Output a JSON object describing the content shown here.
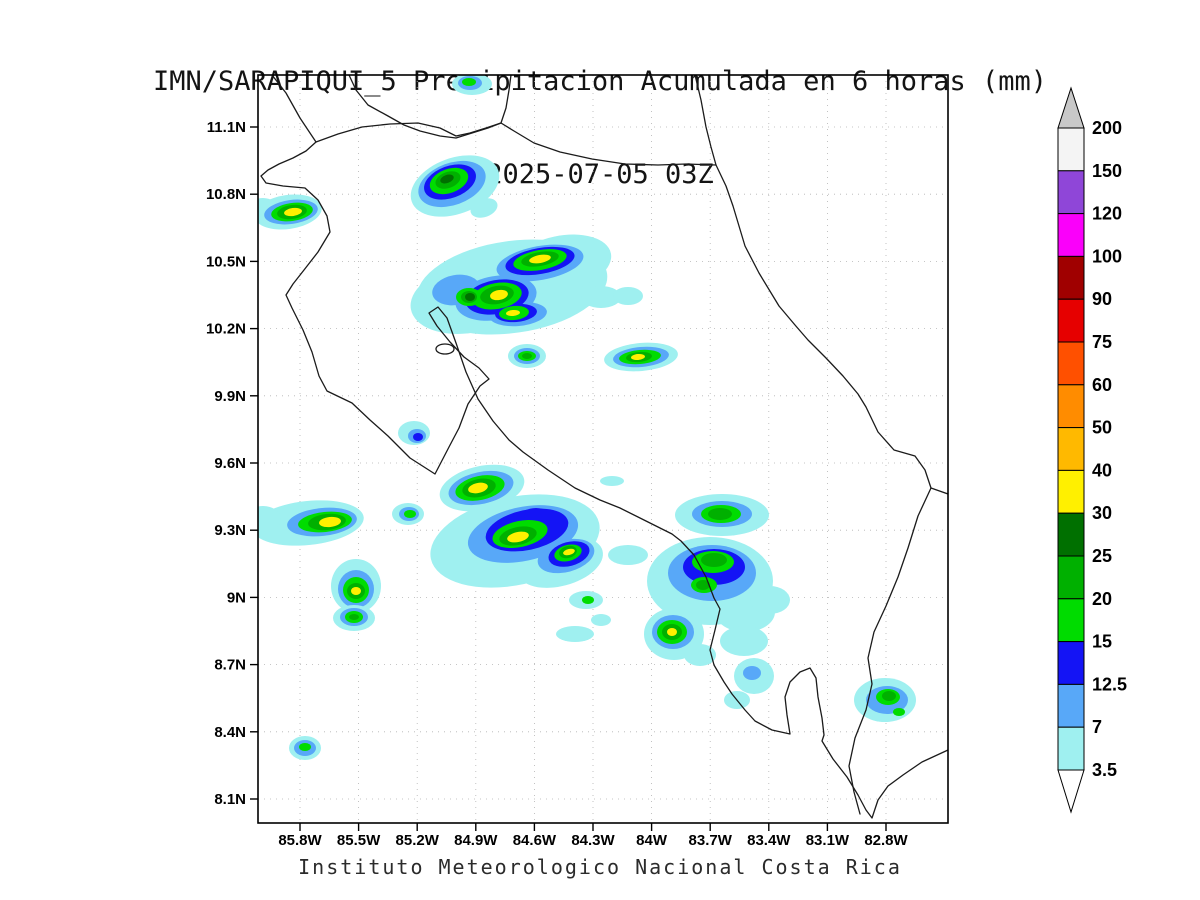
{
  "title": {
    "line1": "IMN/SARAPIQUI_5 Precipitacion Acumulada en 6 horas (mm)",
    "line2": "2025-07-05 03Z"
  },
  "footer": "Instituto Meteorologico Nacional Costa Rica",
  "axes": {
    "y_ticks": [
      "11.1N",
      "10.8N",
      "10.5N",
      "10.2N",
      "9.9N",
      "9.6N",
      "9.3N",
      "9N",
      "8.7N",
      "8.4N",
      "8.1N"
    ],
    "x_ticks": [
      "85.8W",
      "85.5W",
      "85.2W",
      "84.9W",
      "84.6W",
      "84.3W",
      "84W",
      "83.7W",
      "83.4W",
      "83.1W",
      "82.8W"
    ]
  },
  "colorbar": {
    "labels": [
      "200",
      "150",
      "120",
      "100",
      "90",
      "75",
      "60",
      "50",
      "40",
      "30",
      "25",
      "20",
      "15",
      "12.5",
      "7",
      "3.5"
    ],
    "band_colors": [
      "#f4f4f4",
      "#8f46d8",
      "#fa00fa",
      "#a00000",
      "#e60000",
      "#ff5000",
      "#ff8c00",
      "#ffb900",
      "#fff000",
      "#007000",
      "#00b000",
      "#00dc00",
      "#1414f5",
      "#58a8f8",
      "#9ff0f0"
    ],
    "top_arrow_color": "#c8c8c8",
    "bottom_arrow_color": "#ffffff"
  },
  "palette": {
    "l1": "#9ff0f0",
    "l2": "#58a8f8",
    "l3": "#1414f5",
    "l4": "#00dc00",
    "l5": "#00b000",
    "l6": "#007000",
    "l7": "#fff000",
    "l8": "#ffb900"
  },
  "chart_data": {
    "type": "heatmap",
    "title": "IMN/SARAPIQUI_5 Precipitacion Acumulada en 6 horas (mm)",
    "valid_time": "2025-07-05 03Z",
    "units": "mm",
    "region": "Costa Rica",
    "x_ticks": [
      "85.8W",
      "85.5W",
      "85.2W",
      "84.9W",
      "84.6W",
      "84.3W",
      "84W",
      "83.7W",
      "83.4W",
      "83.1W",
      "82.8W"
    ],
    "y_ticks": [
      "11.1N",
      "10.8N",
      "10.5N",
      "10.2N",
      "9.9N",
      "9.6N",
      "9.3N",
      "9N",
      "8.7N",
      "8.4N",
      "8.1N"
    ],
    "legend_levels_mm": [
      3.5,
      7,
      12.5,
      15,
      20,
      25,
      30,
      40,
      50,
      60,
      75,
      90,
      100,
      120,
      150,
      200
    ],
    "legend_position": "right",
    "max_band_shown_mm": 40
  },
  "map": {
    "coast_paths": [
      "M 272,75 L 286,93 L 300,118 L 316,142 L 306,151 L 293,158 L 279,164 L 268,170 L 261,176 L 266,183 L 283,186 L 305,188 L 318,200 L 327,216 L 330,232 L 318,252 L 304,270 L 293,284 L 286,295 L 292,308 L 303,330 L 312,352 L 319,376 L 327,391 L 352,403 L 370,420 L 388,436 L 410,458 L 435,474 L 449,447 L 459,428 L 468,404 L 480,386 L 489,379 L 479,368 L 464,357 L 450,342 L 437,326 L 429,313 L 438,307 L 447,318 L 456,343 L 466,372 L 478,399 L 493,421 L 509,440 L 523,452 L 548,470 L 575,488 L 600,500 L 620,508 L 648,522 L 672,534 L 681,541 L 694,555 L 706,577 L 714,598 L 720,609 L 715,630 L 710,650 L 714,665 L 724,682 L 732,694 L 745,710 L 755,721 L 772,730 L 790,734 L 787,715 L 785,697 L 790,682 L 800,672 L 810,668 L 816,678 L 818,697 L 822,718 L 824,735 L 822,741 L 833,759 L 847,777 L 858,795 L 866,810 L 872,818 L 878,800 L 888,786 L 903,775 L 922,762 L 948,750",
      "M 695,75 L 701,100 L 706,127 L 711,147 L 716,165 L 726,186 L 733,206 L 745,246 L 759,273 L 779,306 L 795,325 L 808,340 L 826,358 L 843,376 L 858,394 L 866,407 L 878,432 L 894,450 L 915,456 L 925,470 L 931,488 L 948,494",
      "M 316,142 L 338,134 L 362,127 L 390,124 L 418,123 L 440,128 L 456,136 L 470,133 L 486,128 L 501,123 L 514,131 L 534,143 L 560,152 L 592,159 L 625,164 L 658,165 L 686,164 L 716,165",
      "M 349,75 L 356,90 L 368,105 L 388,116 L 404,125 L 420,131 L 440,136 L 456,138 L 472,133 L 488,128 L 501,123 L 506,108 L 509,90 L 511,75",
      "M 931,488 L 918,516 L 908,548 L 898,577 L 886,606 L 874,632 L 868,658 L 872,684 L 866,710 L 855,738 L 849,766 L 854,792 L 860,814",
      "M 436,349 a 9,5 0 1 0 18,0 a 9,5 0 1 0 -18,0"
    ],
    "blobs": [
      [
        472,
        84,
        20,
        11,
        0,
        "l1"
      ],
      [
        470,
        83,
        12,
        7,
        0,
        "l2"
      ],
      [
        469,
        82,
        7,
        4,
        0,
        "l4"
      ],
      [
        455,
        186,
        46,
        28,
        -20,
        "l1"
      ],
      [
        484,
        208,
        14,
        9,
        -20,
        "l1"
      ],
      [
        452,
        184,
        35,
        21,
        -20,
        "l2"
      ],
      [
        450,
        182,
        27,
        16,
        -20,
        "l3"
      ],
      [
        449,
        181,
        20,
        12,
        -20,
        "l4"
      ],
      [
        448,
        180,
        13,
        8,
        -20,
        "l5"
      ],
      [
        447,
        179,
        7,
        4,
        -20,
        "l6"
      ],
      [
        288,
        212,
        34,
        17,
        -8,
        "l1"
      ],
      [
        263,
        208,
        14,
        10,
        0,
        "l1"
      ],
      [
        291,
        212,
        27,
        12,
        -8,
        "l2"
      ],
      [
        292,
        212,
        21,
        9,
        -8,
        "l4"
      ],
      [
        292,
        212,
        15,
        7,
        -8,
        "l5"
      ],
      [
        293,
        212,
        9,
        4,
        -8,
        "l7"
      ],
      [
        512,
        287,
        96,
        46,
        -8,
        "l1"
      ],
      [
        468,
        299,
        58,
        34,
        -10,
        "l1"
      ],
      [
        560,
        264,
        52,
        28,
        -12,
        "l1"
      ],
      [
        601,
        297,
        20,
        11,
        0,
        "l1"
      ],
      [
        628,
        296,
        15,
        9,
        0,
        "l1"
      ],
      [
        540,
        263,
        44,
        17,
        -10,
        "l2"
      ],
      [
        496,
        298,
        41,
        22,
        -10,
        "l2"
      ],
      [
        518,
        314,
        29,
        12,
        -5,
        "l2"
      ],
      [
        456,
        290,
        24,
        15,
        -10,
        "l2"
      ],
      [
        540,
        261,
        35,
        13,
        -10,
        "l3"
      ],
      [
        497,
        297,
        32,
        17,
        -10,
        "l3"
      ],
      [
        516,
        313,
        21,
        9,
        -5,
        "l3"
      ],
      [
        540,
        260,
        27,
        10,
        -10,
        "l4"
      ],
      [
        497,
        296,
        25,
        13,
        -10,
        "l4"
      ],
      [
        514,
        313,
        15,
        7,
        -5,
        "l4"
      ],
      [
        469,
        297,
        13,
        9,
        0,
        "l4"
      ],
      [
        540,
        259,
        19,
        7,
        -10,
        "l5"
      ],
      [
        497,
        295,
        17,
        9,
        -10,
        "l5"
      ],
      [
        469,
        297,
        8,
        6,
        0,
        "l5"
      ],
      [
        470,
        297,
        5,
        4,
        0,
        "l6"
      ],
      [
        540,
        259,
        11,
        4,
        -10,
        "l7"
      ],
      [
        499,
        295,
        9,
        5,
        -10,
        "l7"
      ],
      [
        513,
        313,
        7,
        3,
        -5,
        "l7"
      ],
      [
        527,
        356,
        19,
        12,
        0,
        "l1"
      ],
      [
        527,
        356,
        13,
        8,
        0,
        "l2"
      ],
      [
        527,
        356,
        9,
        5,
        0,
        "l4"
      ],
      [
        527,
        356,
        5,
        3,
        0,
        "l5"
      ],
      [
        641,
        357,
        37,
        14,
        -5,
        "l1"
      ],
      [
        641,
        357,
        28,
        10,
        -5,
        "l2"
      ],
      [
        640,
        357,
        21,
        7,
        -5,
        "l4"
      ],
      [
        639,
        357,
        13,
        5,
        -5,
        "l5"
      ],
      [
        638,
        357,
        7,
        3,
        -5,
        "l7"
      ],
      [
        414,
        433,
        16,
        12,
        0,
        "l1"
      ],
      [
        417,
        436,
        9,
        7,
        0,
        "l2"
      ],
      [
        418,
        437,
        5,
        4,
        0,
        "l3"
      ],
      [
        482,
        488,
        43,
        22,
        -12,
        "l1"
      ],
      [
        513,
        505,
        13,
        8,
        0,
        "l1"
      ],
      [
        481,
        488,
        33,
        16,
        -12,
        "l2"
      ],
      [
        480,
        488,
        25,
        12,
        -12,
        "l4"
      ],
      [
        479,
        488,
        17,
        9,
        -12,
        "l5"
      ],
      [
        478,
        488,
        10,
        5,
        -12,
        "l7"
      ],
      [
        612,
        481,
        12,
        5,
        0,
        "l1"
      ],
      [
        308,
        523,
        56,
        22,
        -6,
        "l1"
      ],
      [
        263,
        519,
        18,
        13,
        0,
        "l1"
      ],
      [
        322,
        522,
        35,
        14,
        -6,
        "l2"
      ],
      [
        325,
        522,
        27,
        10,
        -6,
        "l4"
      ],
      [
        327,
        522,
        19,
        8,
        -6,
        "l5"
      ],
      [
        330,
        522,
        11,
        5,
        -6,
        "l7"
      ],
      [
        408,
        514,
        16,
        11,
        0,
        "l1"
      ],
      [
        409,
        514,
        10,
        7,
        0,
        "l2"
      ],
      [
        410,
        514,
        6,
        4,
        0,
        "l4"
      ],
      [
        515,
        541,
        86,
        44,
        -12,
        "l1"
      ],
      [
        560,
        562,
        44,
        24,
        -15,
        "l1"
      ],
      [
        523,
        534,
        56,
        27,
        -12,
        "l2"
      ],
      [
        566,
        556,
        29,
        16,
        -15,
        "l2"
      ],
      [
        527,
        530,
        42,
        20,
        -12,
        "l3"
      ],
      [
        536,
        518,
        16,
        10,
        0,
        "l3"
      ],
      [
        569,
        554,
        21,
        12,
        -15,
        "l3"
      ],
      [
        520,
        534,
        28,
        13,
        -12,
        "l4"
      ],
      [
        568,
        553,
        14,
        8,
        -15,
        "l4"
      ],
      [
        518,
        536,
        19,
        9,
        -12,
        "l5"
      ],
      [
        568,
        552,
        9,
        6,
        -15,
        "l5"
      ],
      [
        518,
        537,
        11,
        5,
        -12,
        "l7"
      ],
      [
        569,
        552,
        6,
        3,
        -15,
        "l7"
      ],
      [
        628,
        555,
        20,
        10,
        0,
        "l1"
      ],
      [
        722,
        515,
        47,
        21,
        0,
        "l1"
      ],
      [
        722,
        514,
        30,
        13,
        0,
        "l2"
      ],
      [
        721,
        514,
        20,
        9,
        0,
        "l4"
      ],
      [
        720,
        514,
        12,
        6,
        0,
        "l5"
      ],
      [
        710,
        581,
        63,
        44,
        0,
        "l1"
      ],
      [
        745,
        612,
        30,
        20,
        0,
        "l1"
      ],
      [
        770,
        600,
        20,
        14,
        0,
        "l1"
      ],
      [
        712,
        573,
        44,
        28,
        0,
        "l2"
      ],
      [
        714,
        567,
        31,
        18,
        0,
        "l3"
      ],
      [
        713,
        562,
        21,
        11,
        0,
        "l4"
      ],
      [
        704,
        585,
        13,
        8,
        0,
        "l4"
      ],
      [
        714,
        560,
        13,
        7,
        0,
        "l5"
      ],
      [
        703,
        585,
        7,
        5,
        0,
        "l5"
      ],
      [
        356,
        586,
        25,
        27,
        0,
        "l1"
      ],
      [
        356,
        589,
        18,
        19,
        0,
        "l2"
      ],
      [
        356,
        590,
        13,
        13,
        0,
        "l4"
      ],
      [
        356,
        591,
        9,
        8,
        0,
        "l5"
      ],
      [
        356,
        591,
        5,
        4,
        0,
        "l7"
      ],
      [
        354,
        618,
        21,
        13,
        0,
        "l1"
      ],
      [
        354,
        617,
        14,
        9,
        0,
        "l2"
      ],
      [
        354,
        617,
        9,
        6,
        0,
        "l4"
      ],
      [
        354,
        617,
        5,
        3,
        0,
        "l5"
      ],
      [
        586,
        600,
        17,
        9,
        0,
        "l1"
      ],
      [
        588,
        600,
        6,
        4,
        0,
        "l4"
      ],
      [
        575,
        634,
        19,
        8,
        0,
        "l1"
      ],
      [
        601,
        620,
        10,
        6,
        0,
        "l1"
      ],
      [
        674,
        634,
        30,
        26,
        0,
        "l1"
      ],
      [
        700,
        655,
        16,
        11,
        0,
        "l1"
      ],
      [
        673,
        632,
        21,
        17,
        0,
        "l2"
      ],
      [
        672,
        632,
        15,
        12,
        0,
        "l4"
      ],
      [
        672,
        632,
        10,
        8,
        0,
        "l5"
      ],
      [
        672,
        632,
        5,
        4,
        0,
        "l7"
      ],
      [
        744,
        641,
        24,
        15,
        0,
        "l1"
      ],
      [
        754,
        676,
        20,
        18,
        0,
        "l1"
      ],
      [
        737,
        700,
        13,
        9,
        0,
        "l1"
      ],
      [
        752,
        673,
        9,
        7,
        0,
        "l2"
      ],
      [
        885,
        700,
        31,
        22,
        0,
        "l1"
      ],
      [
        887,
        700,
        21,
        14,
        0,
        "l2"
      ],
      [
        888,
        697,
        12,
        8,
        0,
        "l4"
      ],
      [
        889,
        696,
        7,
        5,
        0,
        "l5"
      ],
      [
        899,
        712,
        6,
        4,
        0,
        "l4"
      ],
      [
        305,
        748,
        16,
        12,
        0,
        "l1"
      ],
      [
        305,
        748,
        11,
        8,
        0,
        "l2"
      ],
      [
        305,
        747,
        6,
        4,
        0,
        "l4"
      ]
    ]
  }
}
